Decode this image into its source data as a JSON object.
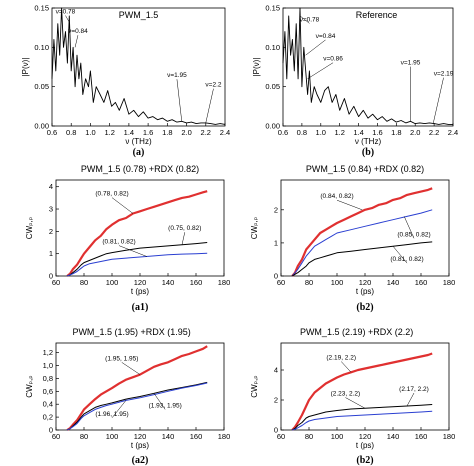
{
  "chart_data": [
    {
      "id": "a",
      "type": "line",
      "panel_label": "(a)",
      "title": "PWM_1.5",
      "xlabel": "ν (THz)",
      "ylabel": "|P(ν)|",
      "xlim": [
        0.6,
        2.4
      ],
      "ylim": [
        0.0,
        0.15
      ],
      "xticks": [
        "0.6",
        "0.8",
        "1.0",
        "1.2",
        "1.4",
        "1.6",
        "1.8",
        "2.0",
        "2.2",
        "2.4"
      ],
      "yticks": [
        "0.00",
        "0.05",
        "0.10",
        "0.15"
      ],
      "series": [
        {
          "color": "#000000",
          "x": [
            0.6,
            0.62,
            0.64,
            0.66,
            0.68,
            0.7,
            0.72,
            0.74,
            0.76,
            0.78,
            0.8,
            0.82,
            0.84,
            0.86,
            0.88,
            0.9,
            0.92,
            0.95,
            0.98,
            1.0,
            1.03,
            1.06,
            1.1,
            1.14,
            1.18,
            1.22,
            1.26,
            1.3,
            1.35,
            1.4,
            1.45,
            1.5,
            1.55,
            1.6,
            1.65,
            1.7,
            1.75,
            1.8,
            1.85,
            1.9,
            1.95,
            2.0,
            2.05,
            2.1,
            2.15,
            2.2,
            2.25,
            2.3,
            2.35,
            2.4
          ],
          "y": [
            0.06,
            0.11,
            0.07,
            0.13,
            0.09,
            0.15,
            0.1,
            0.12,
            0.08,
            0.14,
            0.07,
            0.1,
            0.05,
            0.09,
            0.06,
            0.08,
            0.04,
            0.06,
            0.05,
            0.07,
            0.03,
            0.05,
            0.04,
            0.03,
            0.045,
            0.025,
            0.03,
            0.02,
            0.035,
            0.015,
            0.02,
            0.012,
            0.018,
            0.01,
            0.012,
            0.008,
            0.01,
            0.006,
            0.008,
            0.005,
            0.006,
            0.004,
            0.005,
            0.003,
            0.004,
            0.004,
            0.003,
            0.002,
            0.003,
            0.002
          ]
        }
      ],
      "annotations": [
        {
          "text": "ν=0.78",
          "x": 0.78,
          "y": 0.132,
          "tx": 0.74,
          "ty": 0.143
        },
        {
          "text": "ν=0.84",
          "x": 0.84,
          "y": 0.1,
          "tx": 0.87,
          "ty": 0.118
        },
        {
          "text": "ν=1.95",
          "x": 1.95,
          "y": 0.006,
          "tx": 1.9,
          "ty": 0.062
        },
        {
          "text": "ν=2.2",
          "x": 2.2,
          "y": 0.004,
          "tx": 2.28,
          "ty": 0.05
        }
      ]
    },
    {
      "id": "b",
      "type": "line",
      "panel_label": "(b)",
      "title": "Reference",
      "xlabel": "ν (THz)",
      "ylabel": "|P(ν)|",
      "xlim": [
        0.6,
        2.4
      ],
      "ylim": [
        0.0,
        0.15
      ],
      "xticks": [
        "0.6",
        "0.8",
        "1.0",
        "1.2",
        "1.4",
        "1.6",
        "1.8",
        "2.0",
        "2.2",
        "2.4"
      ],
      "yticks": [
        "0.00",
        "0.05",
        "0.10",
        "0.15"
      ],
      "series": [
        {
          "color": "#000000",
          "x": [
            0.6,
            0.62,
            0.64,
            0.66,
            0.68,
            0.7,
            0.72,
            0.74,
            0.76,
            0.78,
            0.8,
            0.82,
            0.84,
            0.86,
            0.88,
            0.9,
            0.93,
            0.96,
            1.0,
            1.04,
            1.08,
            1.12,
            1.16,
            1.2,
            1.25,
            1.3,
            1.35,
            1.4,
            1.45,
            1.5,
            1.55,
            1.6,
            1.65,
            1.7,
            1.75,
            1.8,
            1.85,
            1.9,
            1.95,
            2.0,
            2.05,
            2.1,
            2.15,
            2.2,
            2.25,
            2.3,
            2.35,
            2.4
          ],
          "y": [
            0.08,
            0.12,
            0.06,
            0.14,
            0.09,
            0.11,
            0.07,
            0.13,
            0.06,
            0.15,
            0.05,
            0.1,
            0.07,
            0.04,
            0.07,
            0.03,
            0.05,
            0.04,
            0.03,
            0.045,
            0.05,
            0.03,
            0.04,
            0.02,
            0.035,
            0.015,
            0.025,
            0.012,
            0.02,
            0.01,
            0.015,
            0.008,
            0.012,
            0.006,
            0.009,
            0.005,
            0.007,
            0.004,
            0.006,
            0.003,
            0.004,
            0.003,
            0.004,
            0.003,
            0.002,
            0.003,
            0.002,
            0.002
          ]
        }
      ],
      "annotations": [
        {
          "text": "ν=0.78",
          "x": 0.78,
          "y": 0.14,
          "tx": 0.88,
          "ty": 0.133
        },
        {
          "text": "ν=0.84",
          "x": 0.84,
          "y": 0.09,
          "tx": 1.05,
          "ty": 0.112
        },
        {
          "text": "ν=0.86",
          "x": 0.86,
          "y": 0.06,
          "tx": 1.13,
          "ty": 0.083
        },
        {
          "text": "ν=1.95",
          "x": 1.95,
          "y": 0.006,
          "tx": 1.95,
          "ty": 0.078
        },
        {
          "text": "ν=2.19",
          "x": 2.19,
          "y": 0.003,
          "tx": 2.3,
          "ty": 0.064
        }
      ]
    },
    {
      "id": "a1",
      "type": "line",
      "panel_label": "(a1)",
      "title": "PWM_1.5  (0.78) +RDX (0.82)",
      "xlabel": "t (ps)",
      "ylabel": "CWₚ,ₚ",
      "xlim": [
        60,
        180
      ],
      "ylim": [
        0,
        4.3
      ],
      "xticks": [
        "60",
        "80",
        "100",
        "120",
        "140",
        "160",
        "180"
      ],
      "yticks": [
        "0",
        "1",
        "2",
        "3",
        "4"
      ],
      "series": [
        {
          "color": "#e03030",
          "width": 2.2,
          "x": [
            68,
            70,
            72,
            75,
            78,
            80,
            84,
            88,
            92,
            96,
            100,
            105,
            110,
            115,
            120,
            125,
            130,
            135,
            140,
            145,
            150,
            155,
            160,
            165,
            168
          ],
          "y": [
            0,
            0.1,
            0.3,
            0.5,
            0.8,
            1.0,
            1.3,
            1.6,
            1.8,
            2.1,
            2.3,
            2.5,
            2.6,
            2.8,
            2.9,
            3.0,
            3.1,
            3.2,
            3.3,
            3.4,
            3.5,
            3.55,
            3.65,
            3.75,
            3.8
          ]
        },
        {
          "color": "#000000",
          "width": 1,
          "x": [
            68,
            70,
            72,
            75,
            78,
            80,
            84,
            88,
            92,
            96,
            100,
            110,
            120,
            130,
            140,
            150,
            160,
            168
          ],
          "y": [
            0,
            0.05,
            0.15,
            0.3,
            0.5,
            0.6,
            0.7,
            0.8,
            0.9,
            1.0,
            1.05,
            1.15,
            1.25,
            1.3,
            1.35,
            1.4,
            1.45,
            1.5
          ]
        },
        {
          "color": "#2a3fd1",
          "width": 1,
          "x": [
            68,
            70,
            72,
            75,
            78,
            80,
            84,
            88,
            92,
            96,
            100,
            110,
            120,
            130,
            140,
            150,
            160,
            168
          ],
          "y": [
            0,
            0.05,
            0.1,
            0.2,
            0.35,
            0.45,
            0.55,
            0.6,
            0.65,
            0.7,
            0.75,
            0.8,
            0.85,
            0.9,
            0.95,
            0.98,
            1.0,
            1.02
          ]
        }
      ],
      "annotations": [
        {
          "text": "(0.78, 0.82)",
          "x": 115,
          "y": 2.8,
          "tx": 100,
          "ty": 3.6
        },
        {
          "text": "(0.75, 0.82)",
          "x": 150,
          "y": 1.4,
          "tx": 152,
          "ty": 2.05
        },
        {
          "text": "(0.81, 0.82)",
          "x": 125,
          "y": 0.87,
          "tx": 105,
          "ty": 1.45
        }
      ]
    },
    {
      "id": "b2top",
      "type": "line",
      "panel_label": "(b2)",
      "title": "PWM_1.5  (0.84) +RDX (0.82)",
      "xlabel": "t (ps)",
      "ylabel": "CWₚ,ₚ",
      "xlim": [
        60,
        180
      ],
      "ylim": [
        0,
        2.9
      ],
      "xticks": [
        "60",
        "80",
        "100",
        "120",
        "140",
        "160",
        "180"
      ],
      "yticks": [
        "0",
        "1",
        "2"
      ],
      "series": [
        {
          "color": "#e03030",
          "width": 2.2,
          "x": [
            68,
            70,
            72,
            75,
            78,
            80,
            84,
            88,
            92,
            96,
            100,
            105,
            110,
            115,
            120,
            125,
            130,
            135,
            140,
            145,
            150,
            155,
            160,
            165,
            168
          ],
          "y": [
            0,
            0.1,
            0.3,
            0.5,
            0.8,
            0.9,
            1.1,
            1.3,
            1.4,
            1.5,
            1.6,
            1.7,
            1.8,
            1.9,
            2.0,
            2.05,
            2.15,
            2.2,
            2.3,
            2.35,
            2.45,
            2.5,
            2.55,
            2.6,
            2.65
          ]
        },
        {
          "color": "#2a3fd1",
          "width": 1,
          "x": [
            68,
            70,
            72,
            75,
            78,
            80,
            84,
            88,
            92,
            96,
            100,
            110,
            120,
            130,
            140,
            150,
            160,
            168
          ],
          "y": [
            0,
            0.1,
            0.2,
            0.4,
            0.6,
            0.7,
            0.9,
            1.0,
            1.1,
            1.2,
            1.3,
            1.4,
            1.5,
            1.6,
            1.7,
            1.8,
            1.9,
            2.0
          ]
        },
        {
          "color": "#000000",
          "width": 1,
          "x": [
            68,
            70,
            72,
            75,
            78,
            80,
            84,
            88,
            92,
            96,
            100,
            110,
            120,
            130,
            140,
            150,
            160,
            168
          ],
          "y": [
            0,
            0.05,
            0.1,
            0.2,
            0.3,
            0.4,
            0.5,
            0.55,
            0.6,
            0.65,
            0.7,
            0.75,
            0.8,
            0.85,
            0.9,
            0.95,
            1.0,
            1.03
          ]
        }
      ],
      "annotations": [
        {
          "text": "(0.84, 0.82)",
          "x": 118,
          "y": 2.0,
          "tx": 100,
          "ty": 2.35
        },
        {
          "text": "(0.85, 0.82)",
          "x": 148,
          "y": 1.8,
          "tx": 155,
          "ty": 1.2
        },
        {
          "text": "(0.81, 0.82)",
          "x": 140,
          "y": 0.9,
          "tx": 150,
          "ty": 0.45
        }
      ]
    },
    {
      "id": "a2",
      "type": "line",
      "panel_label": "(a2)",
      "title": "PWM_1.5 (1.95) +RDX (1.95)",
      "xlabel": "t (ps)",
      "ylabel": "CWₚ,ₚ",
      "xlim": [
        60,
        180
      ],
      "ylim": [
        0,
        1.35
      ],
      "xticks": [
        "60",
        "80",
        "100",
        "120",
        "140",
        "160",
        "180"
      ],
      "yticks": [
        "0",
        "0,2",
        "0,4",
        "0,6",
        "0,8",
        "1,0",
        "1,2"
      ],
      "series": [
        {
          "color": "#e03030",
          "width": 2.2,
          "x": [
            68,
            70,
            72,
            75,
            78,
            80,
            84,
            88,
            92,
            96,
            100,
            105,
            110,
            115,
            120,
            125,
            130,
            135,
            140,
            145,
            150,
            155,
            160,
            165,
            168
          ],
          "y": [
            0,
            0.03,
            0.08,
            0.15,
            0.25,
            0.32,
            0.4,
            0.48,
            0.55,
            0.6,
            0.65,
            0.72,
            0.78,
            0.82,
            0.86,
            0.92,
            0.98,
            1.02,
            1.05,
            1.1,
            1.15,
            1.18,
            1.22,
            1.26,
            1.3
          ]
        },
        {
          "color": "#000000",
          "width": 1,
          "x": [
            68,
            70,
            72,
            75,
            78,
            80,
            84,
            88,
            92,
            96,
            100,
            110,
            120,
            130,
            140,
            150,
            160,
            168
          ],
          "y": [
            0,
            0.02,
            0.06,
            0.12,
            0.2,
            0.25,
            0.3,
            0.35,
            0.38,
            0.4,
            0.42,
            0.48,
            0.52,
            0.57,
            0.62,
            0.66,
            0.7,
            0.74
          ]
        },
        {
          "color": "#2a3fd1",
          "width": 1,
          "x": [
            68,
            70,
            72,
            75,
            78,
            80,
            84,
            88,
            92,
            96,
            100,
            110,
            120,
            130,
            140,
            150,
            160,
            168
          ],
          "y": [
            0,
            0.02,
            0.05,
            0.1,
            0.18,
            0.22,
            0.27,
            0.32,
            0.35,
            0.38,
            0.4,
            0.46,
            0.5,
            0.55,
            0.6,
            0.65,
            0.69,
            0.73
          ]
        }
      ],
      "annotations": [
        {
          "text": "(1.95, 1.95)",
          "x": 120,
          "y": 0.86,
          "tx": 107,
          "ty": 1.08
        },
        {
          "text": "(1.93, 1.95)",
          "x": 130,
          "y": 0.57,
          "tx": 138,
          "ty": 0.35
        },
        {
          "text": "(1.96, 1.95)",
          "x": 110,
          "y": 0.46,
          "tx": 100,
          "ty": 0.22
        }
      ]
    },
    {
      "id": "b2bottom",
      "type": "line",
      "panel_label": "(b2)",
      "title": "PWM_1.5 (2.19) +RDX (2.2)",
      "xlabel": "t (ps)",
      "ylabel": "CWₚ,ₚ",
      "xlim": [
        60,
        180
      ],
      "ylim": [
        0,
        5.8
      ],
      "xticks": [
        "60",
        "80",
        "100",
        "120",
        "140",
        "160",
        "180"
      ],
      "yticks": [
        "0",
        "2",
        "4"
      ],
      "series": [
        {
          "color": "#e03030",
          "width": 2.2,
          "x": [
            68,
            70,
            72,
            75,
            78,
            80,
            84,
            88,
            92,
            96,
            100,
            105,
            110,
            115,
            120,
            125,
            130,
            135,
            140,
            145,
            150,
            155,
            160,
            165,
            168
          ],
          "y": [
            0,
            0.2,
            0.5,
            1.0,
            1.6,
            2.0,
            2.5,
            2.8,
            3.1,
            3.3,
            3.5,
            3.7,
            3.85,
            4.0,
            4.1,
            4.2,
            4.3,
            4.4,
            4.5,
            4.6,
            4.7,
            4.8,
            4.9,
            5.0,
            5.1
          ]
        },
        {
          "color": "#000000",
          "width": 1,
          "x": [
            68,
            70,
            72,
            75,
            78,
            80,
            84,
            88,
            92,
            96,
            100,
            110,
            120,
            130,
            140,
            150,
            160,
            168
          ],
          "y": [
            0,
            0.1,
            0.3,
            0.5,
            0.8,
            0.9,
            1.0,
            1.1,
            1.2,
            1.25,
            1.3,
            1.4,
            1.45,
            1.5,
            1.55,
            1.6,
            1.65,
            1.7
          ]
        },
        {
          "color": "#2a3fd1",
          "width": 1,
          "x": [
            68,
            70,
            72,
            75,
            78,
            80,
            84,
            88,
            92,
            96,
            100,
            110,
            120,
            130,
            140,
            150,
            160,
            168
          ],
          "y": [
            0,
            0.05,
            0.15,
            0.3,
            0.5,
            0.6,
            0.7,
            0.75,
            0.8,
            0.85,
            0.9,
            0.95,
            1.0,
            1.05,
            1.1,
            1.15,
            1.2,
            1.25
          ]
        }
      ],
      "annotations": [
        {
          "text": "(2.19, 2.2)",
          "x": 110,
          "y": 3.85,
          "tx": 103,
          "ty": 4.7
        },
        {
          "text": "(2.23, 2.2)",
          "x": 120,
          "y": 1.45,
          "tx": 106,
          "ty": 2.3
        },
        {
          "text": "(2.17, 2.2)",
          "x": 150,
          "y": 1.6,
          "tx": 155,
          "ty": 2.6
        }
      ]
    }
  ]
}
